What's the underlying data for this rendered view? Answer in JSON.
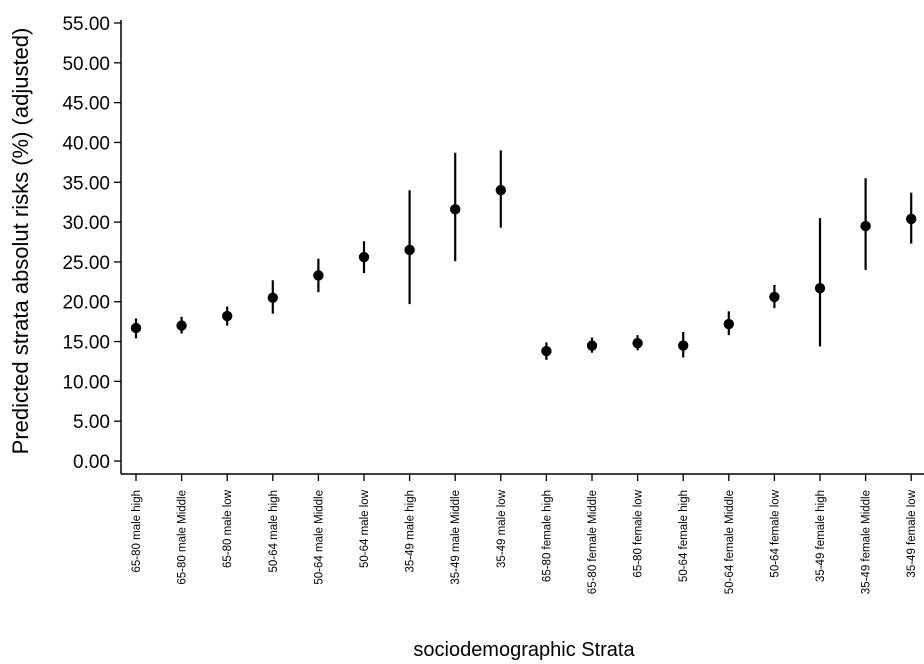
{
  "chart_data": {
    "type": "scatter",
    "title": "",
    "xlabel": "sociodemographic Strata",
    "ylabel": "Predicted strata absolut risks (%) (adjusted)",
    "ylim": [
      0,
      55
    ],
    "yticks": [
      "0.00",
      "5.00",
      "10.00",
      "15.00",
      "20.00",
      "25.00",
      "30.00",
      "35.00",
      "40.00",
      "45.00",
      "50.00",
      "55.00"
    ],
    "grid": false,
    "error_bars": true,
    "categories": [
      "65-80 male high",
      "65-80 male Middle",
      "65-80 male low",
      "50-64 male high",
      "50-64 male Middle",
      "50-64 male low",
      "35-49 male high",
      "35-49 male Middle",
      "35-49 male low",
      "65-80 female high",
      "65-80 female Middle",
      "65-80 female low",
      "50-64 female high",
      "50-64 female Middle",
      "50-64 female low",
      "35-49 female high",
      "35-49 female Middle",
      "35-49 female low"
    ],
    "values": [
      16.7,
      17.0,
      18.2,
      20.5,
      23.3,
      25.6,
      26.5,
      31.6,
      34.0,
      13.8,
      14.5,
      14.8,
      14.5,
      17.2,
      20.6,
      21.7,
      29.5,
      30.4
    ],
    "lower": [
      15.4,
      16.0,
      17.0,
      18.5,
      21.2,
      23.6,
      19.7,
      25.1,
      29.3,
      12.7,
      13.6,
      13.9,
      13.0,
      15.8,
      19.2,
      14.4,
      24.0,
      27.3
    ],
    "upper": [
      17.9,
      18.1,
      19.4,
      22.7,
      25.4,
      27.6,
      34.0,
      38.7,
      39.0,
      14.9,
      15.5,
      15.8,
      16.2,
      18.8,
      22.1,
      30.5,
      35.5,
      33.7
    ],
    "colors": {
      "marker": "#000000",
      "axis": "#000000"
    }
  }
}
